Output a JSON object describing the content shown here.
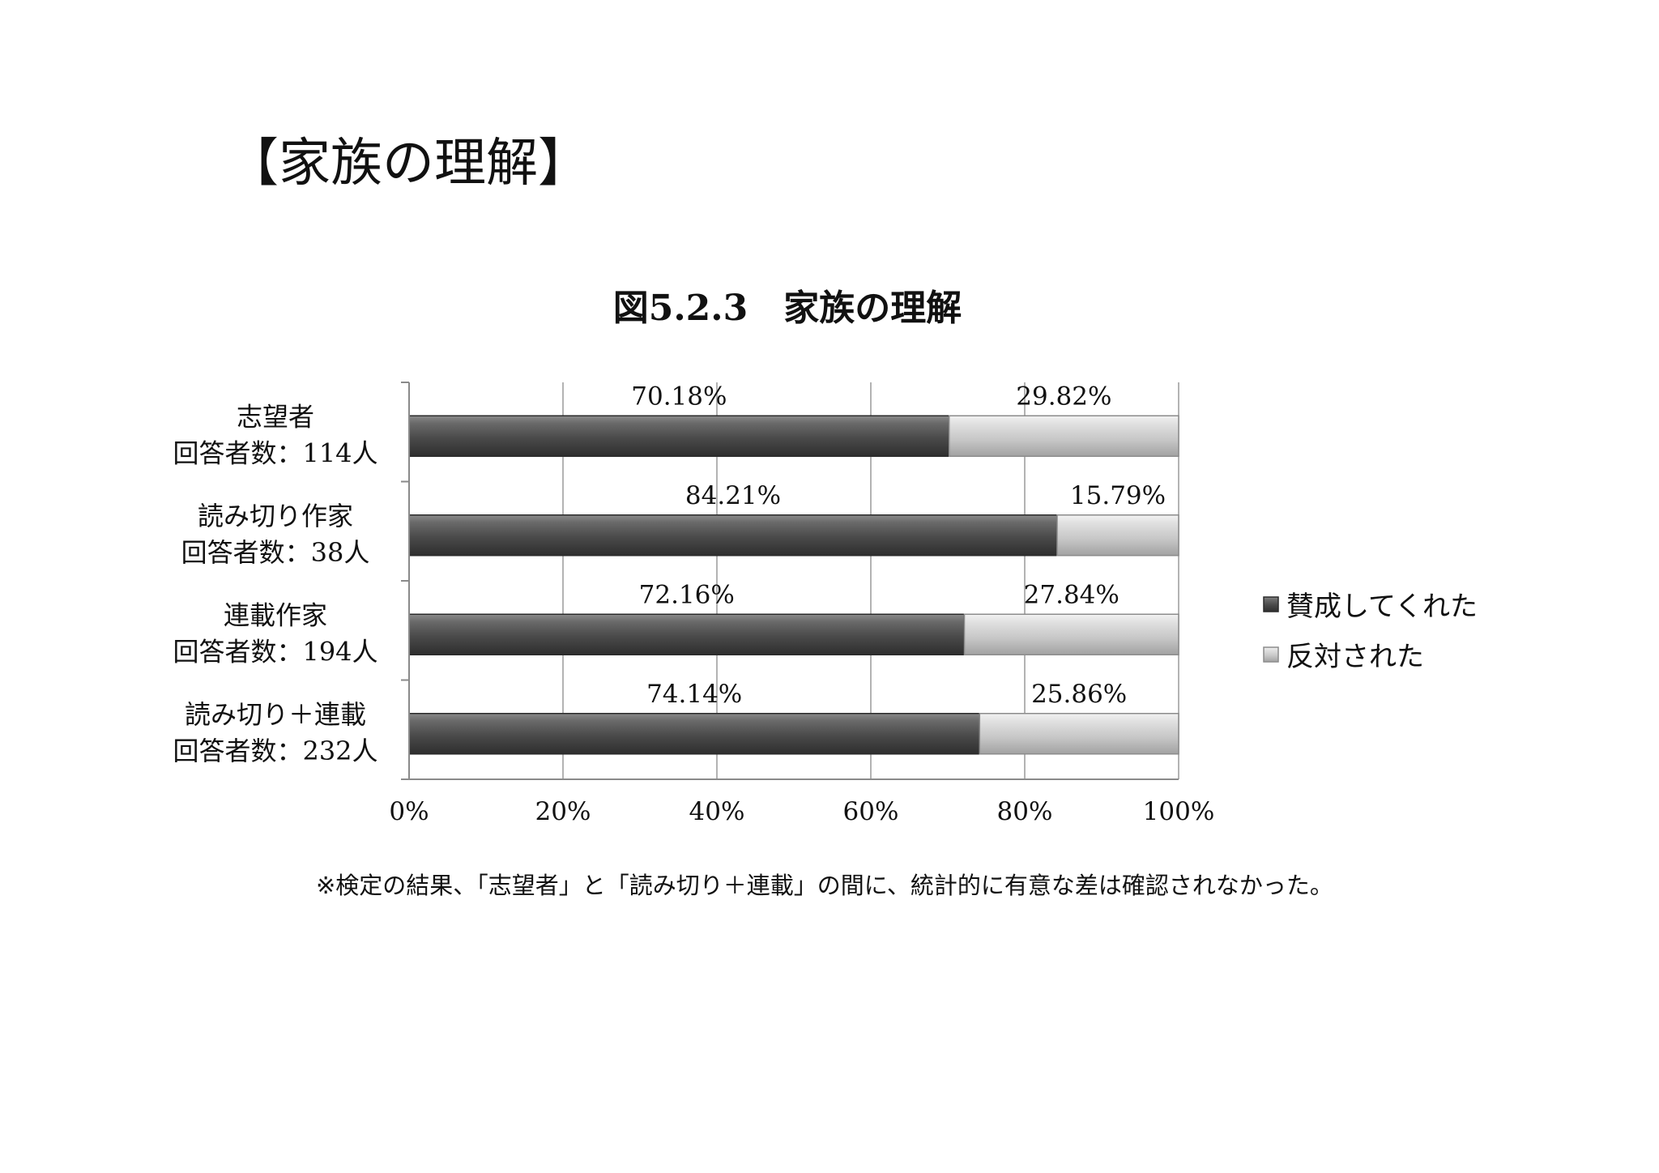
{
  "page": {
    "heading": "【家族の理解】",
    "footnote": "※検定の結果、「志望者」と「読み切り＋連載」の間に、統計的に有意な差は確認されなかった。"
  },
  "chart_data": {
    "type": "bar",
    "orientation": "horizontal",
    "stacked": true,
    "title": "図5.2.3　家族の理解",
    "categories": [
      {
        "name": "志望者",
        "respondents": "回答者数：114人"
      },
      {
        "name": "読み切り作家",
        "respondents": "回答者数：38人"
      },
      {
        "name": "連載作家",
        "respondents": "回答者数：194人"
      },
      {
        "name": "読み切り＋連載",
        "respondents": "回答者数：232人"
      }
    ],
    "series": [
      {
        "name": "賛成してくれた",
        "values": [
          70.18,
          84.21,
          72.16,
          74.14
        ],
        "labels": [
          "70.18%",
          "84.21%",
          "72.16%",
          "74.14%"
        ],
        "color": "#4a4a4a"
      },
      {
        "name": "反対された",
        "values": [
          29.82,
          15.79,
          27.84,
          25.86
        ],
        "labels": [
          "29.82%",
          "15.79%",
          "27.84%",
          "25.86%"
        ],
        "color": "#c9c9c9"
      }
    ],
    "xticks": [
      "0%",
      "20%",
      "40%",
      "60%",
      "80%",
      "100%"
    ],
    "xlim": [
      0,
      100
    ],
    "grid": true,
    "legend_position": "right"
  }
}
